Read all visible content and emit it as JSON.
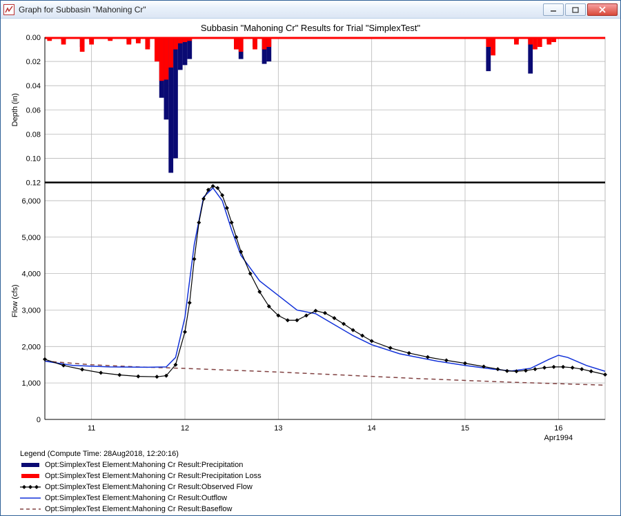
{
  "window": {
    "title": "Graph for Subbasin \"Mahoning Cr\""
  },
  "chart": {
    "title": "Subbasin \"Mahoning Cr\" Results for Trial \"SimplexTest\"",
    "x_axis_secondary": "Apr1994",
    "layout": {
      "aspect": 2,
      "subplot_split": 0.33
    },
    "colors": {
      "precip": "#0a0a73",
      "precip_loss": "#ff0000",
      "observed": "#000000",
      "outflow": "#1030d8",
      "baseflow": "#804040",
      "grid": "#b8b8b8",
      "axis": "#000000",
      "bg": "#ffffff"
    },
    "top_panel": {
      "y_label": "Depth (in)",
      "y_lim": [
        0.12,
        0.0
      ],
      "y_ticks": [
        0.0,
        0.02,
        0.04,
        0.06,
        0.08,
        0.1,
        0.12
      ],
      "precip_bars": [
        {
          "x": 10.7,
          "v": 0.003
        },
        {
          "x": 10.9,
          "v": 0.008
        },
        {
          "x": 11.0,
          "v": 0.004
        },
        {
          "x": 11.2,
          "v": 0.002
        },
        {
          "x": 11.4,
          "v": 0.005
        },
        {
          "x": 11.5,
          "v": 0.003
        },
        {
          "x": 11.6,
          "v": 0.008
        },
        {
          "x": 11.7,
          "v": 0.02
        },
        {
          "x": 11.75,
          "v": 0.05
        },
        {
          "x": 11.8,
          "v": 0.068
        },
        {
          "x": 11.85,
          "v": 0.112
        },
        {
          "x": 11.9,
          "v": 0.1
        },
        {
          "x": 11.95,
          "v": 0.027
        },
        {
          "x": 12.0,
          "v": 0.023
        },
        {
          "x": 12.05,
          "v": 0.018
        },
        {
          "x": 12.55,
          "v": 0.01
        },
        {
          "x": 12.6,
          "v": 0.018
        },
        {
          "x": 12.75,
          "v": 0.008
        },
        {
          "x": 12.85,
          "v": 0.022
        },
        {
          "x": 12.9,
          "v": 0.02
        },
        {
          "x": 15.25,
          "v": 0.028
        },
        {
          "x": 15.3,
          "v": 0.01
        },
        {
          "x": 15.55,
          "v": 0.003
        },
        {
          "x": 15.7,
          "v": 0.03
        },
        {
          "x": 15.9,
          "v": 0.003
        }
      ],
      "loss_bars": [
        {
          "x": 10.55,
          "v": 0.003
        },
        {
          "x": 10.7,
          "v": 0.006
        },
        {
          "x": 10.9,
          "v": 0.012
        },
        {
          "x": 11.0,
          "v": 0.006
        },
        {
          "x": 11.2,
          "v": 0.003
        },
        {
          "x": 11.4,
          "v": 0.006
        },
        {
          "x": 11.5,
          "v": 0.005
        },
        {
          "x": 11.6,
          "v": 0.01
        },
        {
          "x": 11.7,
          "v": 0.02
        },
        {
          "x": 11.75,
          "v": 0.036
        },
        {
          "x": 11.8,
          "v": 0.035
        },
        {
          "x": 11.85,
          "v": 0.025
        },
        {
          "x": 11.9,
          "v": 0.01
        },
        {
          "x": 11.95,
          "v": 0.005
        },
        {
          "x": 12.0,
          "v": 0.004
        },
        {
          "x": 12.05,
          "v": 0.003
        },
        {
          "x": 12.55,
          "v": 0.01
        },
        {
          "x": 12.6,
          "v": 0.012
        },
        {
          "x": 12.75,
          "v": 0.01
        },
        {
          "x": 12.85,
          "v": 0.01
        },
        {
          "x": 12.9,
          "v": 0.008
        },
        {
          "x": 15.25,
          "v": 0.008
        },
        {
          "x": 15.3,
          "v": 0.015
        },
        {
          "x": 15.55,
          "v": 0.006
        },
        {
          "x": 15.7,
          "v": 0.006
        },
        {
          "x": 15.75,
          "v": 0.01
        },
        {
          "x": 15.8,
          "v": 0.008
        },
        {
          "x": 15.9,
          "v": 0.006
        },
        {
          "x": 15.95,
          "v": 0.004
        }
      ]
    },
    "bottom_panel": {
      "y_label": "Flow (cfs)",
      "y_lim": [
        0,
        6500
      ],
      "y_ticks": [
        0,
        1000,
        2000,
        3000,
        4000,
        5000,
        6000
      ],
      "x_ticks": [
        11,
        12,
        13,
        14,
        15,
        16
      ],
      "x_lim": [
        10.5,
        16.5
      ],
      "outflow_line": {
        "color_key": "outflow",
        "width": 1.5,
        "points": [
          [
            10.5,
            1600
          ],
          [
            10.8,
            1480
          ],
          [
            11.2,
            1440
          ],
          [
            11.6,
            1430
          ],
          [
            11.8,
            1440
          ],
          [
            11.9,
            1700
          ],
          [
            12.0,
            2800
          ],
          [
            12.1,
            4800
          ],
          [
            12.2,
            6100
          ],
          [
            12.3,
            6350
          ],
          [
            12.4,
            6000
          ],
          [
            12.5,
            5200
          ],
          [
            12.6,
            4500
          ],
          [
            12.8,
            3800
          ],
          [
            13.0,
            3400
          ],
          [
            13.2,
            3000
          ],
          [
            13.4,
            2900
          ],
          [
            13.6,
            2600
          ],
          [
            13.8,
            2300
          ],
          [
            14.0,
            2050
          ],
          [
            14.3,
            1800
          ],
          [
            14.7,
            1600
          ],
          [
            15.0,
            1480
          ],
          [
            15.3,
            1380
          ],
          [
            15.5,
            1330
          ],
          [
            15.7,
            1400
          ],
          [
            15.9,
            1650
          ],
          [
            16.0,
            1760
          ],
          [
            16.1,
            1700
          ],
          [
            16.3,
            1480
          ],
          [
            16.5,
            1320
          ]
        ]
      },
      "observed_line": {
        "color_key": "observed",
        "width": 1.2,
        "marker": "diamond",
        "marker_size": 3,
        "points": [
          [
            10.5,
            1650
          ],
          [
            10.7,
            1480
          ],
          [
            10.9,
            1370
          ],
          [
            11.1,
            1280
          ],
          [
            11.3,
            1220
          ],
          [
            11.5,
            1180
          ],
          [
            11.7,
            1170
          ],
          [
            11.8,
            1200
          ],
          [
            11.9,
            1500
          ],
          [
            12.0,
            2400
          ],
          [
            12.05,
            3200
          ],
          [
            12.1,
            4400
          ],
          [
            12.15,
            5400
          ],
          [
            12.2,
            6050
          ],
          [
            12.25,
            6300
          ],
          [
            12.3,
            6400
          ],
          [
            12.35,
            6350
          ],
          [
            12.4,
            6150
          ],
          [
            12.45,
            5800
          ],
          [
            12.5,
            5400
          ],
          [
            12.55,
            5000
          ],
          [
            12.6,
            4600
          ],
          [
            12.7,
            4000
          ],
          [
            12.8,
            3500
          ],
          [
            12.9,
            3100
          ],
          [
            13.0,
            2850
          ],
          [
            13.1,
            2720
          ],
          [
            13.2,
            2720
          ],
          [
            13.3,
            2850
          ],
          [
            13.4,
            2980
          ],
          [
            13.5,
            2920
          ],
          [
            13.6,
            2780
          ],
          [
            13.7,
            2620
          ],
          [
            13.8,
            2450
          ],
          [
            13.9,
            2300
          ],
          [
            14.0,
            2150
          ],
          [
            14.2,
            1960
          ],
          [
            14.4,
            1820
          ],
          [
            14.6,
            1710
          ],
          [
            14.8,
            1620
          ],
          [
            15.0,
            1540
          ],
          [
            15.2,
            1450
          ],
          [
            15.35,
            1380
          ],
          [
            15.45,
            1330
          ],
          [
            15.55,
            1320
          ],
          [
            15.65,
            1340
          ],
          [
            15.75,
            1380
          ],
          [
            15.85,
            1420
          ],
          [
            15.95,
            1440
          ],
          [
            16.05,
            1440
          ],
          [
            16.15,
            1420
          ],
          [
            16.25,
            1380
          ],
          [
            16.35,
            1320
          ],
          [
            16.5,
            1230
          ]
        ]
      },
      "baseflow_line": {
        "color_key": "baseflow",
        "width": 1.5,
        "dash": "6,5",
        "points": [
          [
            10.5,
            1600
          ],
          [
            11.0,
            1500
          ],
          [
            11.5,
            1440
          ],
          [
            12.0,
            1400
          ],
          [
            12.5,
            1350
          ],
          [
            13.0,
            1300
          ],
          [
            13.5,
            1240
          ],
          [
            14.0,
            1180
          ],
          [
            14.5,
            1120
          ],
          [
            15.0,
            1070
          ],
          [
            15.5,
            1020
          ],
          [
            16.0,
            980
          ],
          [
            16.5,
            940
          ]
        ]
      }
    }
  },
  "legend": {
    "compute_time": "Legend (Compute Time: 28Aug2018, 12:20:16)",
    "items": [
      {
        "label": "Opt:SimplexTest Element:Mahoning Cr Result:Precipitation",
        "swatch": "precip-bar"
      },
      {
        "label": "Opt:SimplexTest Element:Mahoning Cr Result:Precipitation Loss",
        "swatch": "loss-bar"
      },
      {
        "label": "Opt:SimplexTest Element:Mahoning Cr Result:Observed Flow",
        "swatch": "observed-line"
      },
      {
        "label": "Opt:SimplexTest Element:Mahoning Cr Result:Outflow",
        "swatch": "outflow-line"
      },
      {
        "label": "Opt:SimplexTest Element:Mahoning Cr Result:Baseflow",
        "swatch": "baseflow-line"
      }
    ]
  }
}
